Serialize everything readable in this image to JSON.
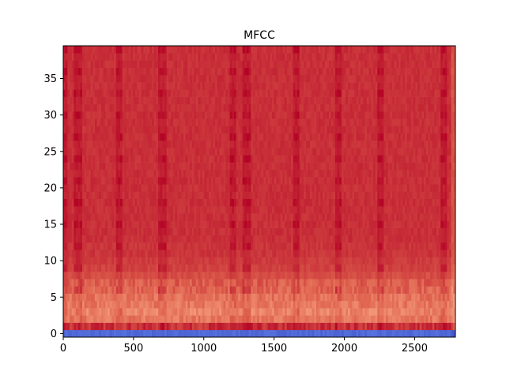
{
  "chart_data": {
    "type": "heatmap",
    "title": "MFCC",
    "xlabel": "",
    "ylabel": "",
    "xlim": [
      0,
      2790
    ],
    "ylim": [
      -0.5,
      39.5
    ],
    "xticks": [
      0,
      500,
      1000,
      1500,
      2000,
      2500
    ],
    "yticks": [
      0,
      5,
      10,
      15,
      20,
      25,
      30,
      35
    ],
    "n_coefficients": 40,
    "n_frames": 2790,
    "colormap": "coolwarm",
    "dominant_color": "#d24a3c",
    "low_color": "#7f9df2",
    "grid": false,
    "legend": "none",
    "row_levels_description_free": [
      0.08,
      0.93,
      0.8,
      0.77,
      0.8,
      0.81,
      0.84,
      0.85,
      0.88,
      0.9,
      0.91,
      0.92,
      0.92,
      0.93,
      0.93,
      0.93,
      0.93,
      0.93,
      0.93,
      0.93,
      0.93,
      0.93,
      0.93,
      0.93,
      0.93,
      0.93,
      0.93,
      0.93,
      0.93,
      0.93,
      0.93,
      0.93,
      0.93,
      0.93,
      0.93,
      0.93,
      0.93,
      0.93,
      0.93,
      0.93
    ],
    "dark_stripe_frames": [
      0,
      100,
      390,
      700,
      1200,
      1300,
      1650,
      1950,
      2250,
      2700
    ]
  }
}
